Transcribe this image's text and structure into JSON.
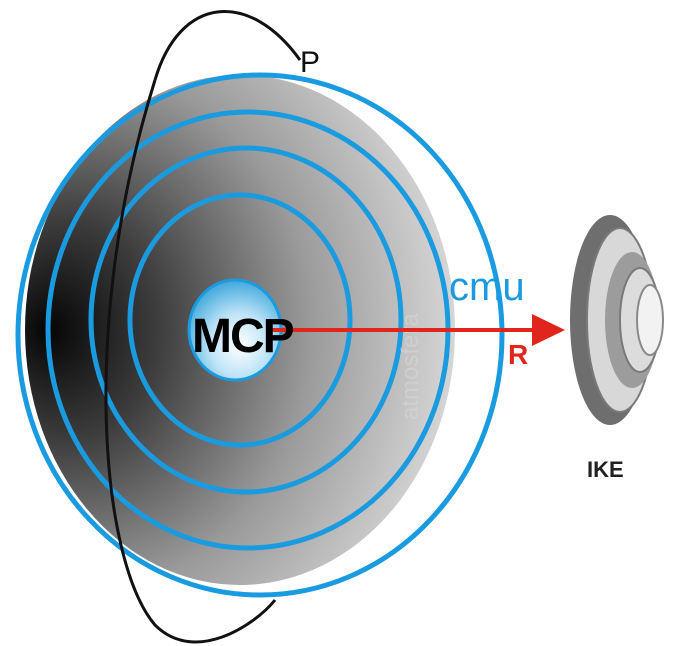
{
  "labels": {
    "p": "P",
    "cmu": "cmu",
    "r": "R",
    "mcp": "MCP",
    "ike": "IKE",
    "faint_vertical": "atmosfera"
  },
  "colors": {
    "blue": "#1a9be0",
    "red": "#e0261c",
    "black": "#111111"
  }
}
